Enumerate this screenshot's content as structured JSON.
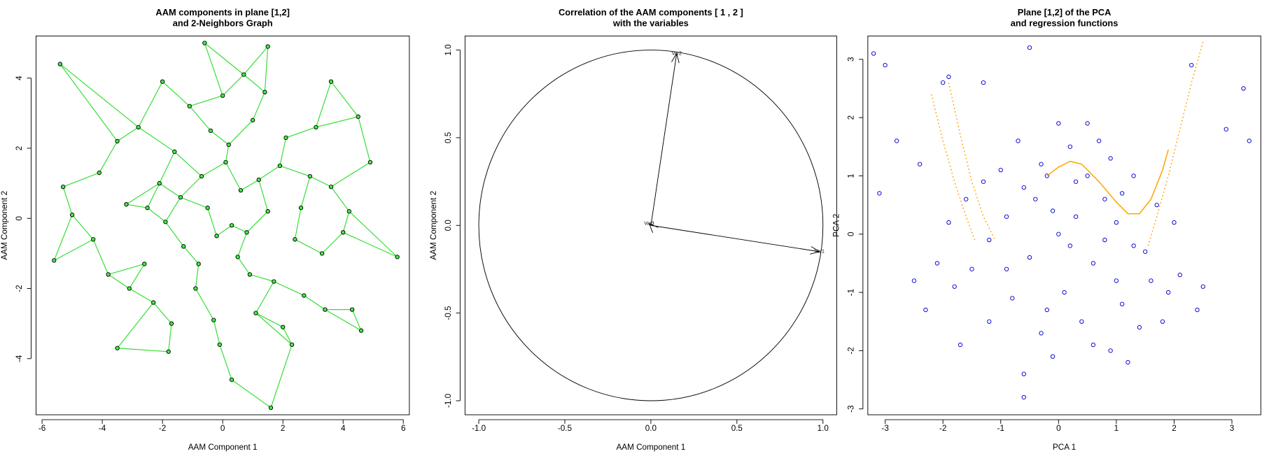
{
  "chart_data": [
    {
      "type": "scatter",
      "title": [
        "AAM components in plane [1,2]",
        "and 2-Neighbors Graph"
      ],
      "x_label": "AAM Component 1",
      "y_label": "AAM Component 2",
      "xlim": [
        -6.2,
        6.2
      ],
      "ylim": [
        -5.6,
        5.2
      ],
      "xticks": [
        -6,
        -4,
        -2,
        0,
        2,
        4,
        6
      ],
      "yticks": [
        -4,
        -2,
        0,
        2,
        4
      ],
      "neighbors": 2,
      "edge_color": "#33dd33",
      "series": [
        {
          "style": "points",
          "color": "#000000",
          "fill": "#44ee44",
          "x": [
            -5.6,
            -5.4,
            -5.0,
            -5.3,
            5.8,
            4.9,
            4.5,
            3.6,
            1.5,
            -0.6,
            1.6,
            0.3,
            -3.5,
            4.3,
            4.6,
            -1.8,
            2.3,
            -0.5,
            0.8,
            1.2,
            -1.3,
            0.2,
            -2.1,
            2.4,
            -0.9,
            1.7,
            -2.6,
            2.9,
            0.5,
            -1.6,
            1.0,
            -0.2,
            -3.2,
            3.3,
            0.0,
            -1.1,
            2.1,
            -2.8,
            -0.7,
            1.5,
            -1.9,
            0.6,
            2.6,
            -3.8,
            3.6,
            -0.3,
            1.1,
            -2.3,
            2.0,
            -4.1,
            4.0,
            0.3,
            -1.4,
            1.9,
            -0.8,
            0.9,
            -2.5,
            3.1,
            -3.5,
            -4.3,
            4.2,
            0.1,
            -0.1,
            1.4,
            -1.7,
            2.7,
            -3.1,
            3.4,
            -0.4,
            0.7,
            -2.0
          ],
          "values": [
            -1.2,
            4.4,
            0.1,
            0.9,
            -1.1,
            1.6,
            2.9,
            3.9,
            4.9,
            5.0,
            -5.4,
            -4.6,
            -3.7,
            -2.6,
            -3.2,
            -3.8,
            -3.6,
            0.3,
            -0.4,
            1.1,
            -0.8,
            2.1,
            1.0,
            -0.6,
            -2.0,
            -1.8,
            -1.3,
            1.2,
            -1.1,
            1.9,
            2.8,
            -0.5,
            0.4,
            -1.0,
            3.5,
            3.2,
            2.3,
            2.6,
            1.2,
            0.2,
            -0.1,
            0.8,
            0.3,
            -1.6,
            0.9,
            -2.9,
            -2.7,
            -2.4,
            -3.1,
            1.3,
            -0.4,
            -0.2,
            0.6,
            1.5,
            -1.3,
            -1.6,
            0.3,
            2.6,
            2.2,
            -0.6,
            0.2,
            1.6,
            -3.6,
            3.6,
            -3.0,
            -2.2,
            -2.0,
            -2.6,
            2.5,
            4.1,
            3.9
          ]
        }
      ]
    },
    {
      "type": "vector",
      "title": [
        "Correlation of the AAM components [ 1 , 2 ]",
        "with the variables"
      ],
      "x_label": "AAM Component 1",
      "y_label": "AAM Component 2",
      "xlim": [
        -1.08,
        1.08
      ],
      "ylim": [
        -1.08,
        1.08
      ],
      "xticks": [
        {
          "value": -1,
          "label": "-1.0"
        },
        -0.5,
        {
          "value": 0,
          "label": "0.0"
        },
        0.5,
        {
          "value": 1,
          "label": "1.0"
        }
      ],
      "yticks": [
        {
          "value": -1,
          "label": "-1.0"
        },
        -0.5,
        {
          "value": 0,
          "label": "0.0"
        },
        0.5,
        {
          "value": 1,
          "label": "1.0"
        }
      ],
      "labels": [
        "Var1",
        "Var2",
        "Var3"
      ],
      "x": [
        0.98,
        0.15,
        -0.01
      ],
      "values": [
        -0.15,
        0.98,
        0.01
      ],
      "color": "#000000"
    },
    {
      "type": "scatter",
      "title": [
        "Plane [1,2] of the PCA",
        "and regression functions"
      ],
      "x_label": "PCA 1",
      "y_label": "PCA 2",
      "xlim": [
        -3.3,
        3.5
      ],
      "ylim": [
        -3.1,
        3.4
      ],
      "xticks": [
        -3,
        -2,
        -1,
        0,
        1,
        2,
        3
      ],
      "yticks": [
        -3,
        -2,
        -1,
        0,
        1,
        2,
        3
      ],
      "series": [
        {
          "style": "points",
          "color": "#0000cc",
          "x": [
            -3.2,
            -3.0,
            -0.5,
            3.2,
            3.3,
            2.9,
            2.3,
            -2.8,
            -3.1,
            -0.6,
            -2.4,
            -2.0,
            -1.9,
            -1.3,
            0,
            0.2,
            -0.3,
            0.5,
            -0.6,
            0.8,
            -0.1,
            0.3,
            1.0,
            -0.9,
            1.3,
            -1.2,
            0.6,
            -0.5,
            1.6,
            -1.5,
            0.1,
            1.1,
            -0.8,
            1.9,
            -1.8,
            0.4,
            -0.3,
            1.4,
            -1.2,
            0.9,
            -0.1,
            1.2,
            2.1,
            -2.1,
            2.4,
            -2.3,
            1.7,
            -1.6,
            0.7,
            -0.7,
            0.0,
            0.9,
            -1.0,
            1.5,
            -0.4,
            0.2,
            2.0,
            -1.9,
            1.8,
            -1.7,
            0.5,
            -0.2,
            0.6,
            1.0,
            -0.9,
            2.5,
            -2.5,
            0.3,
            -0.6,
            1.3,
            -1.3,
            0.8,
            -0.2,
            1.1
          ],
          "values": [
            3.1,
            2.9,
            3.2,
            2.5,
            1.6,
            1.8,
            2.9,
            1.6,
            0.7,
            -2.8,
            1.2,
            2.6,
            2.7,
            2.6,
            1.9,
            1.5,
            1.2,
            1.0,
            0.8,
            0.6,
            0.4,
            0.9,
            0.2,
            0.3,
            -0.2,
            -0.1,
            -0.5,
            -0.4,
            -0.8,
            -0.6,
            -1.0,
            -1.2,
            -1.1,
            -1.0,
            -0.9,
            -1.5,
            -1.7,
            -1.6,
            -1.5,
            -2.0,
            -2.1,
            -2.2,
            -0.7,
            -0.5,
            -1.3,
            -1.3,
            0.5,
            0.6,
            1.6,
            1.6,
            0.0,
            1.3,
            1.1,
            -0.3,
            0.6,
            -0.2,
            0.2,
            0.2,
            -1.5,
            -1.9,
            1.9,
            -1.3,
            -1.9,
            -0.8,
            -0.6,
            -0.9,
            -0.8,
            0.3,
            -2.4,
            1.0,
            0.9,
            -0.1,
            1.0,
            0.7
          ]
        },
        {
          "style": "dotted",
          "color": "#ffa500",
          "x": [
            -2.2,
            -2.0,
            -1.8,
            -1.6,
            -1.45,
            0,
            1.55,
            1.7,
            1.9,
            2.1,
            2.3,
            2.5
          ],
          "values": [
            2.4,
            1.6,
            0.9,
            0.3,
            -0.1,
            null,
            -0.2,
            0.3,
            1.0,
            1.8,
            2.6,
            3.3
          ]
        },
        {
          "style": "dotted",
          "color": "#ffa500",
          "x": [
            -1.9,
            -1.7,
            -1.5,
            -1.3,
            -1.1
          ],
          "values": [
            2.6,
            1.7,
            0.9,
            0.3,
            -0.1
          ]
        },
        {
          "style": "solid",
          "color": "#ffa500",
          "x": [
            -0.2,
            0,
            0.2,
            0.4,
            0.7,
            1.0,
            1.2,
            1.4,
            1.6,
            1.8,
            1.9
          ],
          "values": [
            1.0,
            1.15,
            1.25,
            1.2,
            0.9,
            0.55,
            0.35,
            0.35,
            0.6,
            1.1,
            1.45
          ]
        }
      ]
    }
  ]
}
